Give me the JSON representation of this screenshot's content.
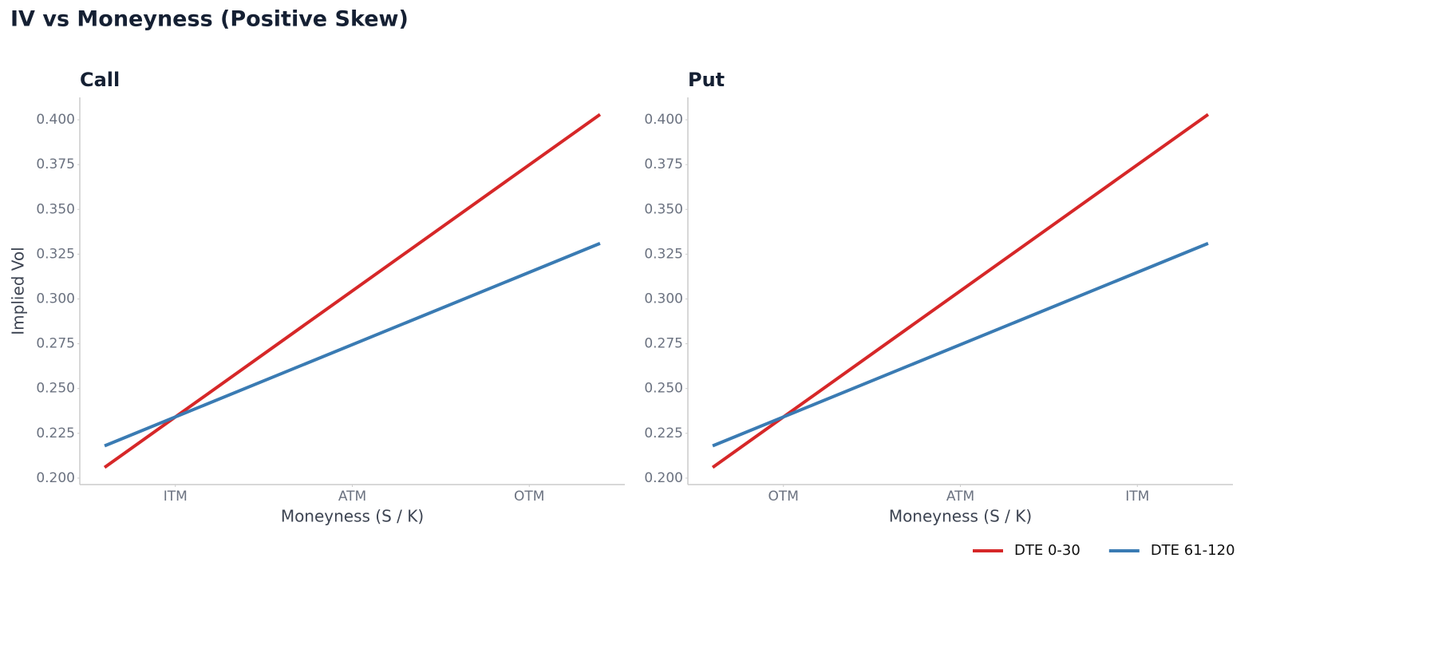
{
  "title": "IV vs Moneyness (Positive Skew)",
  "chart_data": [
    {
      "type": "line",
      "title": "Call",
      "xlabel": "Moneyness (S / K)",
      "ylabel": "Implied Vol",
      "x": [
        -0.4,
        2.4
      ],
      "xlim": [
        -0.54,
        2.54
      ],
      "xticks": [
        {
          "value": 0,
          "label": "ITM"
        },
        {
          "value": 1,
          "label": "ATM"
        },
        {
          "value": 2,
          "label": "OTM"
        }
      ],
      "ylim": [
        0.1964,
        0.4125
      ],
      "yticks": [
        {
          "value": 0.2,
          "label": "0.200"
        },
        {
          "value": 0.225,
          "label": "0.225"
        },
        {
          "value": 0.25,
          "label": "0.250"
        },
        {
          "value": 0.275,
          "label": "0.275"
        },
        {
          "value": 0.3,
          "label": "0.300"
        },
        {
          "value": 0.325,
          "label": "0.325"
        },
        {
          "value": 0.35,
          "label": "0.350"
        },
        {
          "value": 0.375,
          "label": "0.375"
        },
        {
          "value": 0.4,
          "label": "0.400"
        }
      ],
      "series": [
        {
          "name": "DTE 0-30",
          "color": "#d62728",
          "values": [
            0.206,
            0.403
          ]
        },
        {
          "name": "DTE 61-120",
          "color": "#3a7bb3",
          "values": [
            0.218,
            0.331
          ]
        }
      ]
    },
    {
      "type": "line",
      "title": "Put",
      "xlabel": "Moneyness (S / K)",
      "x": [
        -0.4,
        2.4
      ],
      "xlim": [
        -0.54,
        2.54
      ],
      "xticks": [
        {
          "value": 0,
          "label": "OTM"
        },
        {
          "value": 1,
          "label": "ATM"
        },
        {
          "value": 2,
          "label": "ITM"
        }
      ],
      "ylim": [
        0.1964,
        0.4125
      ],
      "yticks": [
        {
          "value": 0.2,
          "label": "0.200"
        },
        {
          "value": 0.225,
          "label": "0.225"
        },
        {
          "value": 0.25,
          "label": "0.250"
        },
        {
          "value": 0.275,
          "label": "0.275"
        },
        {
          "value": 0.3,
          "label": "0.300"
        },
        {
          "value": 0.325,
          "label": "0.325"
        },
        {
          "value": 0.35,
          "label": "0.350"
        },
        {
          "value": 0.375,
          "label": "0.375"
        },
        {
          "value": 0.4,
          "label": "0.400"
        }
      ],
      "series": [
        {
          "name": "DTE 0-30",
          "color": "#d62728",
          "values": [
            0.206,
            0.403
          ]
        },
        {
          "name": "DTE 61-120",
          "color": "#3a7bb3",
          "values": [
            0.218,
            0.331
          ]
        }
      ]
    }
  ]
}
